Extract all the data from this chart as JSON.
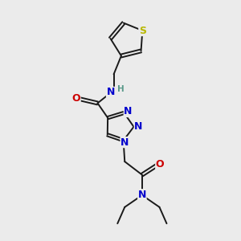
{
  "background_color": "#ebebeb",
  "atom_colors": {
    "C": "#000000",
    "N": "#0000cc",
    "O": "#cc0000",
    "S": "#b8b800",
    "H": "#5a9a8a"
  },
  "bond_color": "#1a1a1a",
  "bond_width": 1.4,
  "fig_width": 3.0,
  "fig_height": 3.0,
  "dpi": 100
}
